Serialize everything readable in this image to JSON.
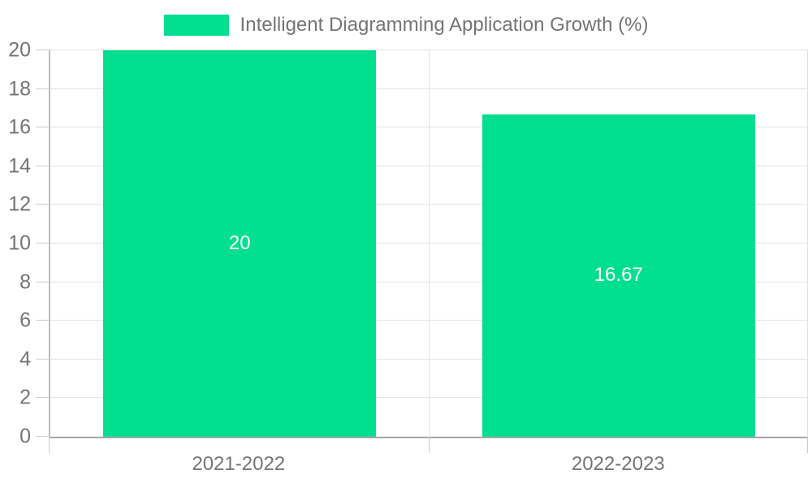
{
  "legend": {
    "label": "Intelligent Diagramming Application Growth (%)"
  },
  "chart_data": {
    "type": "bar",
    "title": "Intelligent Diagramming Application Growth (%)",
    "categories": [
      "2021-2022",
      "2022-2023"
    ],
    "values": [
      20,
      16.67
    ],
    "value_labels": [
      "20",
      "16.67"
    ],
    "xlabel": "",
    "ylabel": "",
    "ylim": [
      0,
      20
    ],
    "ytick_step": 2,
    "grid": true,
    "legend_position": "top-center",
    "bar_color": "#00de90",
    "bar_value_label_color": "#ffffff",
    "axis_text_color": "#757575",
    "gridline_color": "#e2e2e2",
    "bar_width_fraction": 0.72
  }
}
